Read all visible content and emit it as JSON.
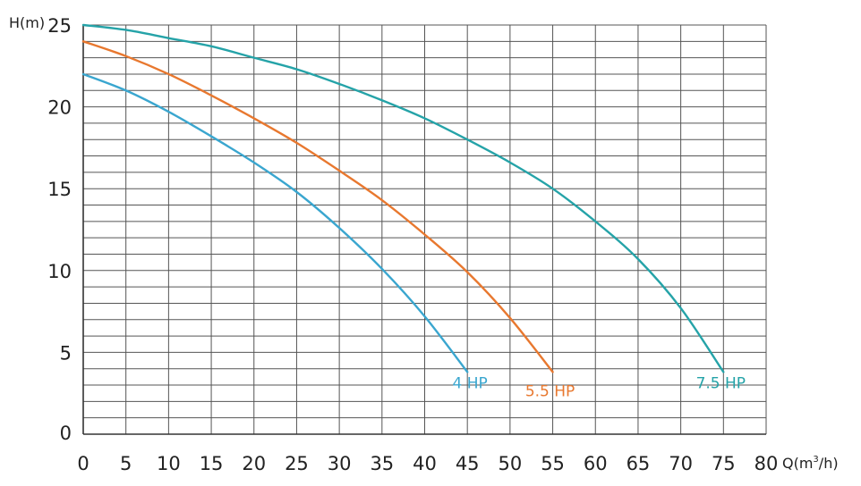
{
  "chart_data": {
    "type": "line",
    "title": "",
    "ylabel": "H(m)",
    "xlabel_main": "Q(m",
    "xlabel_sup": "3",
    "xlabel_tail": "/h)",
    "xlim": [
      0,
      80
    ],
    "ylim": [
      0,
      25
    ],
    "x_ticks": [
      0,
      5,
      10,
      15,
      20,
      25,
      30,
      35,
      40,
      45,
      50,
      55,
      60,
      65,
      70,
      75,
      80
    ],
    "y_ticks": [
      0,
      5,
      10,
      15,
      20,
      25
    ],
    "x_tick_labels": [
      "0",
      "5",
      "10",
      "15",
      "20",
      "25",
      "30",
      "35",
      "40",
      "45",
      "50",
      "55",
      "60",
      "65",
      "70",
      "75",
      "80"
    ],
    "y_tick_labels": [
      "0",
      "5",
      "10",
      "15",
      "20",
      "25"
    ],
    "grid": true,
    "minor_grid_y_step": 1,
    "grid_color": "#555555",
    "series": [
      {
        "name": "4 HP",
        "color": "#3aa6cf",
        "x": [
          0,
          5,
          10,
          15,
          20,
          25,
          30,
          35,
          40,
          45
        ],
        "y": [
          22,
          21,
          19.7,
          18.2,
          16.6,
          14.8,
          12.6,
          10.1,
          7.2,
          3.8
        ]
      },
      {
        "name": "5.5 HP",
        "color": "#e8782f",
        "x": [
          0,
          5,
          10,
          15,
          20,
          25,
          30,
          35,
          40,
          45,
          50,
          55
        ],
        "y": [
          24,
          23.1,
          22,
          20.7,
          19.3,
          17.8,
          16.1,
          14.3,
          12.2,
          9.9,
          7.1,
          3.8
        ]
      },
      {
        "name": "7.5 HP",
        "color": "#25a3a8",
        "x": [
          0,
          5,
          10,
          15,
          20,
          25,
          30,
          35,
          40,
          45,
          50,
          55,
          60,
          65,
          70,
          75
        ],
        "y": [
          25,
          24.7,
          24.2,
          23.7,
          23,
          22.3,
          21.4,
          20.4,
          19.3,
          18,
          16.6,
          15,
          13,
          10.7,
          7.7,
          3.8
        ]
      }
    ],
    "label_positions": [
      "4 HP",
      "5.5 HP",
      "7.5 HP"
    ]
  }
}
